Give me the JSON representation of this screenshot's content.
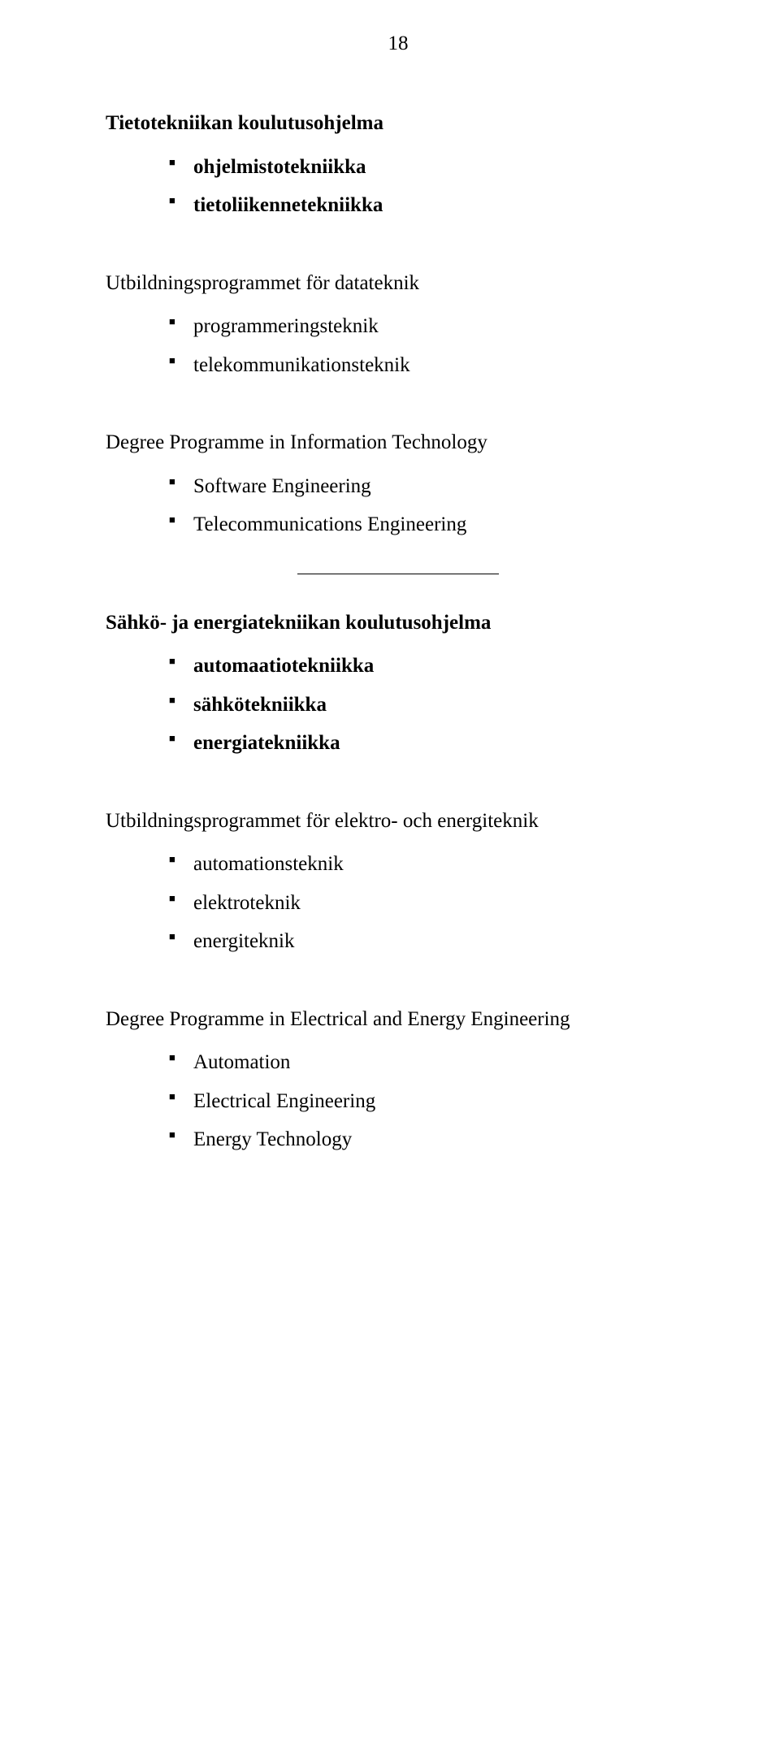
{
  "page_number": "18",
  "sections": [
    {
      "title": "Tietotekniikan koulutusohjelma",
      "title_bold": true,
      "items": [
        {
          "text": "ohjelmistotekniikka",
          "bold": true
        },
        {
          "text": "tietoliikennetekniikka",
          "bold": true
        }
      ]
    },
    {
      "title": "Utbildningsprogrammet för datateknik",
      "title_bold": false,
      "items": [
        {
          "text": "programmeringsteknik",
          "bold": false
        },
        {
          "text": "telekommunikationsteknik",
          "bold": false
        }
      ]
    },
    {
      "title": "Degree Programme in Information Technology",
      "title_bold": false,
      "items": [
        {
          "text": "Software Engineering",
          "bold": false
        },
        {
          "text": "Telecommunications Engineering",
          "bold": false
        }
      ]
    },
    {
      "title": "Sähkö- ja energiatekniikan koulutusohjelma",
      "title_bold": true,
      "items": [
        {
          "text": "automaatiotekniikka",
          "bold": true
        },
        {
          "text": "sähkötekniikka",
          "bold": true
        },
        {
          "text": "energiatekniikka",
          "bold": true
        }
      ]
    },
    {
      "title": "Utbildningsprogrammet för elektro- och energiteknik",
      "title_bold": false,
      "items": [
        {
          "text": "automationsteknik",
          "bold": false
        },
        {
          "text": "elektroteknik",
          "bold": false
        },
        {
          "text": "energiteknik",
          "bold": false
        }
      ]
    },
    {
      "title": "Degree Programme in Electrical and Energy Engineering",
      "title_bold": false,
      "items": [
        {
          "text": "Automation",
          "bold": false
        },
        {
          "text": "Electrical Engineering",
          "bold": false
        },
        {
          "text": "Energy Technology",
          "bold": false
        }
      ]
    }
  ]
}
